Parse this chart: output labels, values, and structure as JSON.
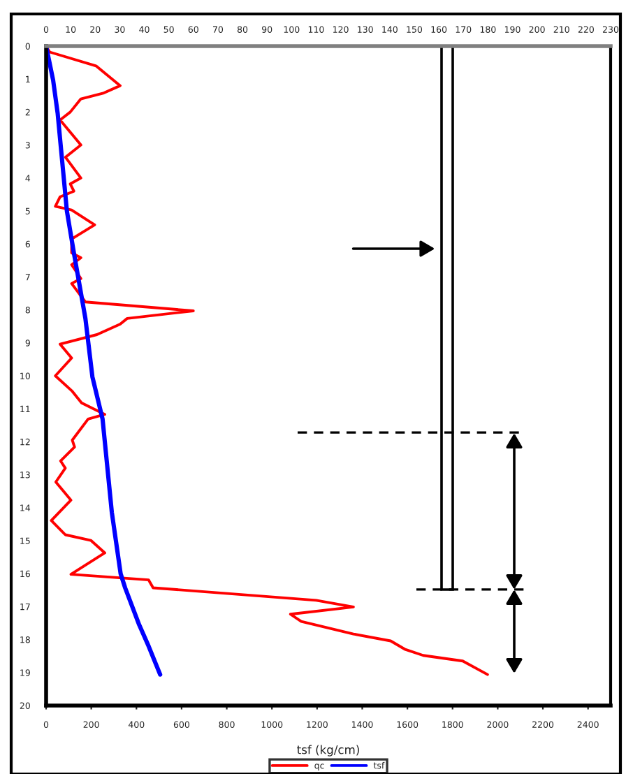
{
  "chart_data": {
    "type": "line",
    "orientation": "horizontal",
    "xlabel": "tsf (kg/cm)",
    "xlim": [
      0,
      2500
    ],
    "xticks": [
      0,
      200,
      400,
      600,
      800,
      1000,
      1200,
      1400,
      1600,
      1800,
      2000,
      2200,
      2400
    ],
    "x2lim": [
      0,
      230
    ],
    "x2ticks": [
      0,
      10,
      20,
      30,
      40,
      50,
      60,
      70,
      80,
      90,
      100,
      110,
      120,
      130,
      140,
      150,
      160,
      170,
      180,
      190,
      200,
      210,
      220,
      230
    ],
    "ylim": [
      20,
      0
    ],
    "yticks": [
      0,
      1,
      2,
      3,
      4,
      5,
      6,
      7,
      8,
      9,
      10,
      11,
      12,
      13,
      14,
      15,
      16,
      17,
      18,
      19,
      20
    ],
    "ref_lines": [
      {
        "axis": "y",
        "value": 11.72,
        "line_style": "dashed",
        "color": "#000000"
      },
      {
        "axis": "y",
        "value": 16.48,
        "line_style": "dashed",
        "color": "#000000"
      }
    ],
    "legend": "bottom",
    "grid": false,
    "marker": "none",
    "line_style": "solid",
    "series": [
      {
        "name": "qc",
        "color": "#ff0000",
        "x": [
          0,
          0.18,
          0.6,
          1.2,
          1.42,
          1.6,
          2.0,
          2.24,
          3.0,
          3.37,
          4.0,
          4.18,
          4.4,
          4.57,
          4.86,
          4.97,
          5.42,
          5.85,
          6.27,
          6.42,
          6.63,
          7.05,
          7.2,
          7.76,
          8.03,
          8.26,
          8.43,
          8.75,
          9.04,
          9.46,
          10.0,
          10.47,
          10.82,
          11.17,
          11.31,
          11.95,
          12.16,
          12.58,
          12.8,
          13.22,
          13.77,
          14.39,
          14.82,
          14.99,
          15.37,
          16.02,
          16.19,
          16.43,
          16.81,
          17.01,
          17.23,
          17.45,
          17.83,
          18.04,
          18.29,
          18.48,
          18.65,
          19.06
        ],
        "values": [
          0,
          16,
          221,
          328,
          256,
          154,
          107,
          62,
          154,
          86,
          154,
          107,
          123,
          62,
          41,
          113,
          215,
          113,
          113,
          154,
          113,
          154,
          113,
          174,
          652,
          359,
          328,
          225,
          62,
          113,
          41,
          116,
          157,
          260,
          186,
          116,
          126,
          64,
          85,
          43,
          110,
          23,
          85,
          198,
          260,
          110,
          454,
          474,
          1196,
          1361,
          1082,
          1130,
          1361,
          1526,
          1588,
          1670,
          1845,
          1955
        ]
      },
      {
        "name": "tsf",
        "color": "#0000ff",
        "x": [
          0,
          1.03,
          2.03,
          5.0,
          6.27,
          8.26,
          10.03,
          11.31,
          14.14,
          16.0,
          16.43,
          17.55,
          18.2,
          19.06
        ],
        "values": [
          0,
          31,
          51,
          92,
          123,
          174,
          205,
          250,
          291,
          330,
          350,
          412,
          454,
          505
        ]
      }
    ]
  }
}
